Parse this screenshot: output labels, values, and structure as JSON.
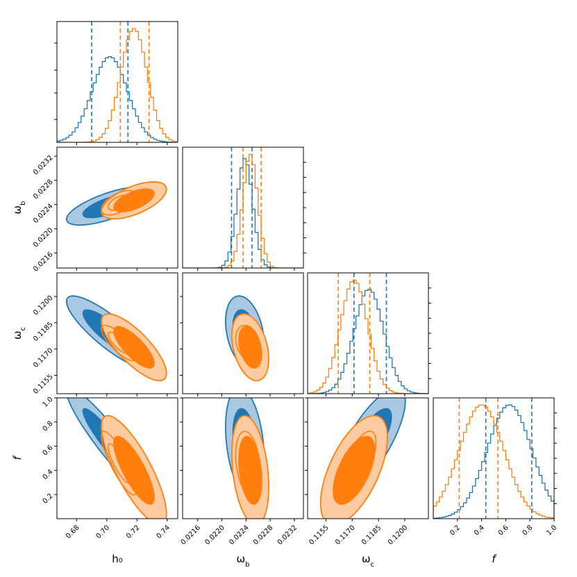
{
  "chart_data": {
    "type": "corner",
    "colors": {
      "blue": "#1f77b4",
      "orange": "#ff7f0e",
      "blue_outer": "#a9c9e3",
      "orange_outer": "#ffcba0"
    },
    "parameters": [
      {
        "key": "h0",
        "label": "h₀",
        "range": [
          0.667,
          0.747
        ],
        "ticks": [
          0.68,
          0.7,
          0.72,
          0.74
        ],
        "tick_labels": [
          "0.68",
          "0.70",
          "0.72",
          "0.74"
        ]
      },
      {
        "key": "omega_b",
        "label": "ωb",
        "label_main": "ω",
        "label_sub": "b",
        "range": [
          0.02135,
          0.02335
        ],
        "ticks": [
          0.0216,
          0.022,
          0.0224,
          0.0228,
          0.0232
        ],
        "tick_labels": [
          "0.0216",
          "0.0220",
          "0.0224",
          "0.0228",
          "0.0232"
        ]
      },
      {
        "key": "omega_c",
        "label": "ωc",
        "label_main": "ω",
        "label_sub": "c",
        "range": [
          0.11445,
          0.12135
        ],
        "ticks": [
          0.1155,
          0.117,
          0.1185,
          0.12
        ],
        "tick_labels": [
          "0.1155",
          "0.1170",
          "0.1185",
          "0.1200"
        ]
      },
      {
        "key": "f",
        "label": "f",
        "range": [
          0.0,
          1.0
        ],
        "ticks": [
          0.2,
          0.4,
          0.6,
          0.8,
          1.0
        ],
        "tick_labels": [
          "0.2",
          "0.4",
          "0.6",
          "0.8",
          "1.0"
        ]
      }
    ],
    "series": [
      {
        "name": "blue",
        "style": "filled",
        "mean": [
          0.702,
          0.02238,
          0.11795,
          0.63
        ],
        "sigma": [
          0.0117,
          0.00013,
          0.00085,
          0.185
        ],
        "correlations": {
          "1_0": 0.7,
          "2_0": -0.85,
          "2_1": -0.3,
          "3_0": -0.93,
          "3_1": -0.28,
          "3_2": 0.76
        },
        "quantile_lines": [
          [
            0.69,
            0.714
          ],
          [
            0.02216,
            0.0225
          ],
          [
            0.1171,
            0.11895
          ],
          [
            0.435,
            0.815
          ]
        ]
      },
      {
        "name": "orange",
        "style": "filled",
        "mean": [
          0.718,
          0.02247,
          0.1171,
          0.4
        ],
        "sigma": [
          0.0088,
          0.000125,
          0.00078,
          0.185
        ],
        "correlations": {
          "1_0": 0.6,
          "2_0": -0.78,
          "2_1": -0.35,
          "3_0": -0.8,
          "3_1": -0.3,
          "3_2": 0.6
        },
        "quantile_lines": [
          [
            0.709,
            0.728
          ],
          [
            0.02235,
            0.02265
          ],
          [
            0.1162,
            0.118
          ],
          [
            0.215,
            0.535
          ]
        ]
      },
      {
        "name": "orange-overlay",
        "style": "outline",
        "mean": [
          0.708,
          0.02243,
          0.11735,
          0.46
        ],
        "sigma": [
          0.0075,
          0.00013,
          0.00065,
          0.17
        ],
        "correlations": {
          "1_0": 0.55,
          "2_0": -0.8,
          "2_1": -0.25,
          "3_0": -0.85,
          "3_1": -0.25,
          "3_2": 0.65
        },
        "quantile_lines": []
      }
    ]
  }
}
